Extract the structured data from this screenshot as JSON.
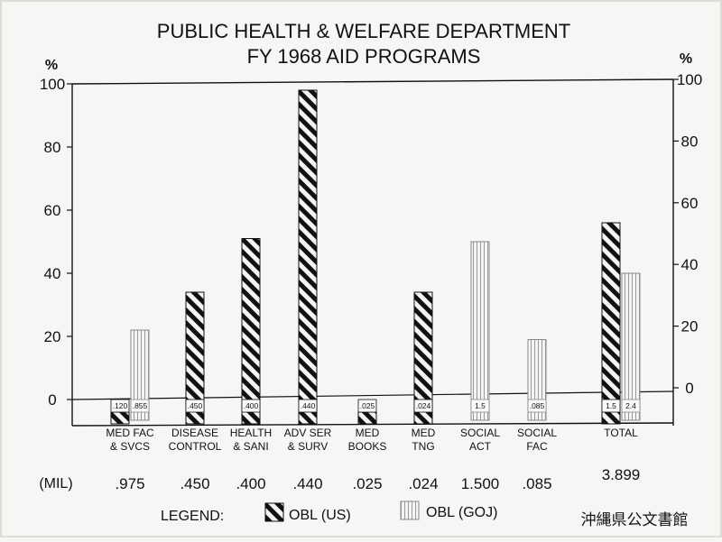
{
  "chart_data": {
    "type": "bar",
    "title_lines": [
      "PUBLIC HEALTH & WELFARE DEPARTMENT",
      "FY 1968 AID PROGRAMS"
    ],
    "y_unit_left": "%",
    "y_unit_right": "%",
    "ylim": [
      -8,
      100
    ],
    "left_ticks": [
      0,
      20,
      40,
      60,
      80,
      100
    ],
    "right_ticks": [
      0,
      20,
      40,
      60,
      80,
      100
    ],
    "categories": [
      [
        "MED FAC",
        "& SVCS"
      ],
      [
        "DISEASE",
        "CONTROL"
      ],
      [
        "HEALTH",
        "& SANI"
      ],
      [
        "ADV SER",
        "& SURV"
      ],
      [
        "MED",
        "BOOKS"
      ],
      [
        "MED",
        "TNG"
      ],
      [
        "SOCIAL",
        "ACT"
      ],
      [
        "SOCIAL",
        "FAC"
      ],
      [
        "TOTAL"
      ]
    ],
    "series": [
      {
        "name": "OBL (US)",
        "pattern": "diagonal-hatch",
        "values": [
          null,
          34,
          51,
          98,
          null,
          34,
          null,
          null,
          56
        ],
        "value_labels": [
          ".120",
          ".450",
          ".400",
          ".440",
          ".025",
          ".024",
          "",
          "",
          "1.5"
        ]
      },
      {
        "name": "OBL (GOJ)",
        "pattern": "vertical-hatch",
        "values": [
          22,
          null,
          null,
          null,
          null,
          null,
          50,
          19,
          40
        ],
        "value_labels": [
          ".855",
          "",
          "",
          "",
          "",
          "",
          "1.5",
          ".085",
          "2.4"
        ]
      }
    ],
    "mil_label": "(MIL)",
    "mil_values": [
      ".975",
      ".450",
      ".400",
      ".440",
      ".025",
      ".024",
      "1.500",
      ".085",
      "3.899"
    ],
    "legend_label": "LEGEND:",
    "legend_placement": "bottom"
  },
  "watermark": "沖縄県公文書館",
  "colors": {
    "ink": "#111111",
    "paper": "#f6f6f4",
    "frame": "#ffffff"
  }
}
